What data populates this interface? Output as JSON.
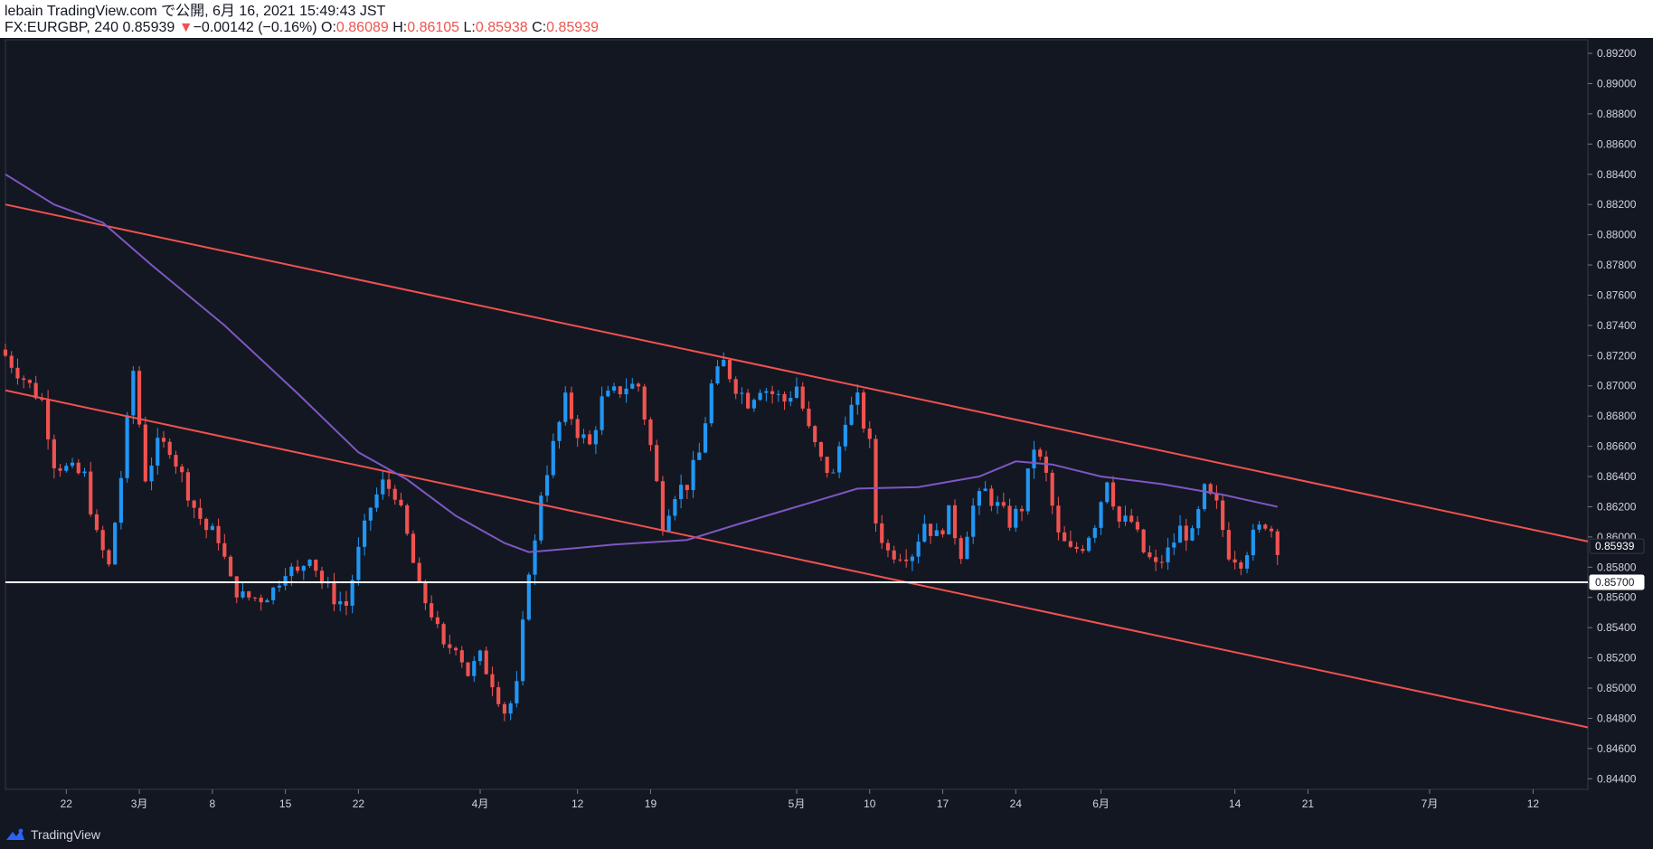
{
  "header": {
    "publish_line": "lebain TradingView.com で公開, 6月 16, 2021 15:49:43 JST",
    "symbol_interval": "FX:EURGBP, 240",
    "last": "0.85939",
    "change_arrow": "▼",
    "change": "−0.00142 (−0.16%)",
    "o_label": "O:",
    "o_value": "0.86089",
    "h_label": "H:",
    "h_value": "0.86105",
    "l_label": "L:",
    "l_value": "0.85938",
    "c_label": "C:",
    "c_value": "0.85939"
  },
  "footer": {
    "brand": "TradingView",
    "logo_icon": "tradingview-logo-icon"
  },
  "colors": {
    "background": "#131722",
    "up": "#2196f3",
    "down": "#ef5350",
    "trendline": "#f0524f",
    "ma": "#7e57c2",
    "support": "#ffffff",
    "axis_text": "#d1d4dc"
  },
  "chart_data": {
    "type": "candlestick",
    "symbol": "FX:EURGBP",
    "interval": "240",
    "ylim": [
      0.8433,
      0.8929
    ],
    "y_ticks": [
      "0.89200",
      "0.89000",
      "0.88800",
      "0.88600",
      "0.88400",
      "0.88200",
      "0.88000",
      "0.87800",
      "0.87600",
      "0.87400",
      "0.87200",
      "0.87000",
      "0.86800",
      "0.86600",
      "0.86400",
      "0.86200",
      "0.86000",
      "0.85800",
      "0.85600",
      "0.85400",
      "0.85200",
      "0.85000",
      "0.84800",
      "0.84600",
      "0.84400"
    ],
    "x_ticks": [
      "22",
      "3月",
      "8",
      "15",
      "22",
      "4月",
      "12",
      "19",
      "5月",
      "10",
      "17",
      "24",
      "6月",
      "14",
      "21",
      "7月",
      "12"
    ],
    "x_tick_index": [
      10,
      22,
      34,
      46,
      58,
      78,
      94,
      106,
      130,
      142,
      154,
      166,
      180,
      202,
      214,
      234,
      251
    ],
    "x_range": [
      0,
      260
    ],
    "price_labels": [
      {
        "label": "0.85939",
        "value": 0.85939,
        "style": "last"
      },
      {
        "label": "0.85700",
        "value": 0.857,
        "style": "support"
      }
    ],
    "close_anchors": [
      [
        0,
        0.872
      ],
      [
        3,
        0.8705
      ],
      [
        6,
        0.869
      ],
      [
        8,
        0.865
      ],
      [
        10,
        0.8645
      ],
      [
        13,
        0.864
      ],
      [
        15,
        0.86
      ],
      [
        17,
        0.858
      ],
      [
        19,
        0.864
      ],
      [
        21,
        0.871
      ],
      [
        23,
        0.864
      ],
      [
        25,
        0.866
      ],
      [
        27,
        0.866
      ],
      [
        29,
        0.864
      ],
      [
        31,
        0.862
      ],
      [
        33,
        0.8605
      ],
      [
        35,
        0.86
      ],
      [
        37,
        0.857
      ],
      [
        39,
        0.856
      ],
      [
        42,
        0.856
      ],
      [
        44,
        0.8565
      ],
      [
        46,
        0.858
      ],
      [
        48,
        0.8575
      ],
      [
        50,
        0.859
      ],
      [
        52,
        0.857
      ],
      [
        54,
        0.856
      ],
      [
        56,
        0.8555
      ],
      [
        58,
        0.859
      ],
      [
        60,
        0.862
      ],
      [
        62,
        0.8635
      ],
      [
        64,
        0.863
      ],
      [
        66,
        0.86
      ],
      [
        68,
        0.8565
      ],
      [
        70,
        0.855
      ],
      [
        72,
        0.8525
      ],
      [
        74,
        0.853
      ],
      [
        76,
        0.851
      ],
      [
        78,
        0.852
      ],
      [
        80,
        0.8505
      ],
      [
        82,
        0.8485
      ],
      [
        83,
        0.849
      ],
      [
        84,
        0.85
      ],
      [
        85,
        0.854
      ],
      [
        86,
        0.858
      ],
      [
        87,
        0.8595
      ],
      [
        88,
        0.863
      ],
      [
        90,
        0.866
      ],
      [
        92,
        0.869
      ],
      [
        94,
        0.867
      ],
      [
        96,
        0.866
      ],
      [
        98,
        0.869
      ],
      [
        100,
        0.8695
      ],
      [
        102,
        0.87
      ],
      [
        104,
        0.87
      ],
      [
        106,
        0.866
      ],
      [
        108,
        0.861
      ],
      [
        110,
        0.863
      ],
      [
        112,
        0.8635
      ],
      [
        114,
        0.8655
      ],
      [
        116,
        0.87
      ],
      [
        118,
        0.8715
      ],
      [
        120,
        0.87
      ],
      [
        122,
        0.869
      ],
      [
        124,
        0.87
      ],
      [
        126,
        0.8695
      ],
      [
        128,
        0.869
      ],
      [
        130,
        0.87
      ],
      [
        132,
        0.867
      ],
      [
        134,
        0.865
      ],
      [
        136,
        0.864
      ],
      [
        138,
        0.868
      ],
      [
        140,
        0.869
      ],
      [
        142,
        0.866
      ],
      [
        143,
        0.861
      ],
      [
        145,
        0.859
      ],
      [
        147,
        0.859
      ],
      [
        149,
        0.859
      ],
      [
        151,
        0.861
      ],
      [
        153,
        0.86
      ],
      [
        155,
        0.8615
      ],
      [
        157,
        0.859
      ],
      [
        159,
        0.862
      ],
      [
        161,
        0.863
      ],
      [
        163,
        0.862
      ],
      [
        165,
        0.861
      ],
      [
        167,
        0.862
      ],
      [
        169,
        0.866
      ],
      [
        171,
        0.864
      ],
      [
        173,
        0.86
      ],
      [
        175,
        0.859
      ],
      [
        177,
        0.8595
      ],
      [
        179,
        0.861
      ],
      [
        181,
        0.864
      ],
      [
        183,
        0.861
      ],
      [
        185,
        0.861
      ],
      [
        187,
        0.859
      ],
      [
        189,
        0.858
      ],
      [
        191,
        0.859
      ],
      [
        193,
        0.8605
      ],
      [
        195,
        0.86
      ],
      [
        197,
        0.863
      ],
      [
        199,
        0.862
      ],
      [
        201,
        0.859
      ],
      [
        203,
        0.8585
      ],
      [
        205,
        0.86
      ],
      [
        207,
        0.861
      ],
      [
        208,
        0.8605
      ],
      [
        209,
        0.8594
      ]
    ],
    "series": [
      {
        "name": "",
        "type": "ma",
        "points": [
          [
            0,
            0.884
          ],
          [
            8,
            0.882
          ],
          [
            16,
            0.8808
          ],
          [
            24,
            0.878
          ],
          [
            36,
            0.874
          ],
          [
            48,
            0.8695
          ],
          [
            58,
            0.8656
          ],
          [
            66,
            0.8638
          ],
          [
            74,
            0.8614
          ],
          [
            82,
            0.8596
          ],
          [
            86,
            0.859
          ],
          [
            92,
            0.8592
          ],
          [
            100,
            0.8595
          ],
          [
            112,
            0.8598
          ],
          [
            120,
            0.8608
          ],
          [
            130,
            0.862
          ],
          [
            140,
            0.8632
          ],
          [
            150,
            0.8633
          ],
          [
            160,
            0.864
          ],
          [
            166,
            0.865
          ],
          [
            172,
            0.8648
          ],
          [
            180,
            0.864
          ],
          [
            190,
            0.8635
          ],
          [
            200,
            0.8628
          ],
          [
            209,
            0.862
          ]
        ]
      }
    ],
    "trendlines": [
      {
        "name": "",
        "points": [
          [
            0,
            0.882
          ],
          [
            260,
            0.8597
          ]
        ]
      },
      {
        "name": "",
        "points": [
          [
            0,
            0.8697
          ],
          [
            260,
            0.8474
          ]
        ]
      }
    ],
    "hlines": [
      {
        "name": "",
        "value": 0.857
      }
    ]
  }
}
